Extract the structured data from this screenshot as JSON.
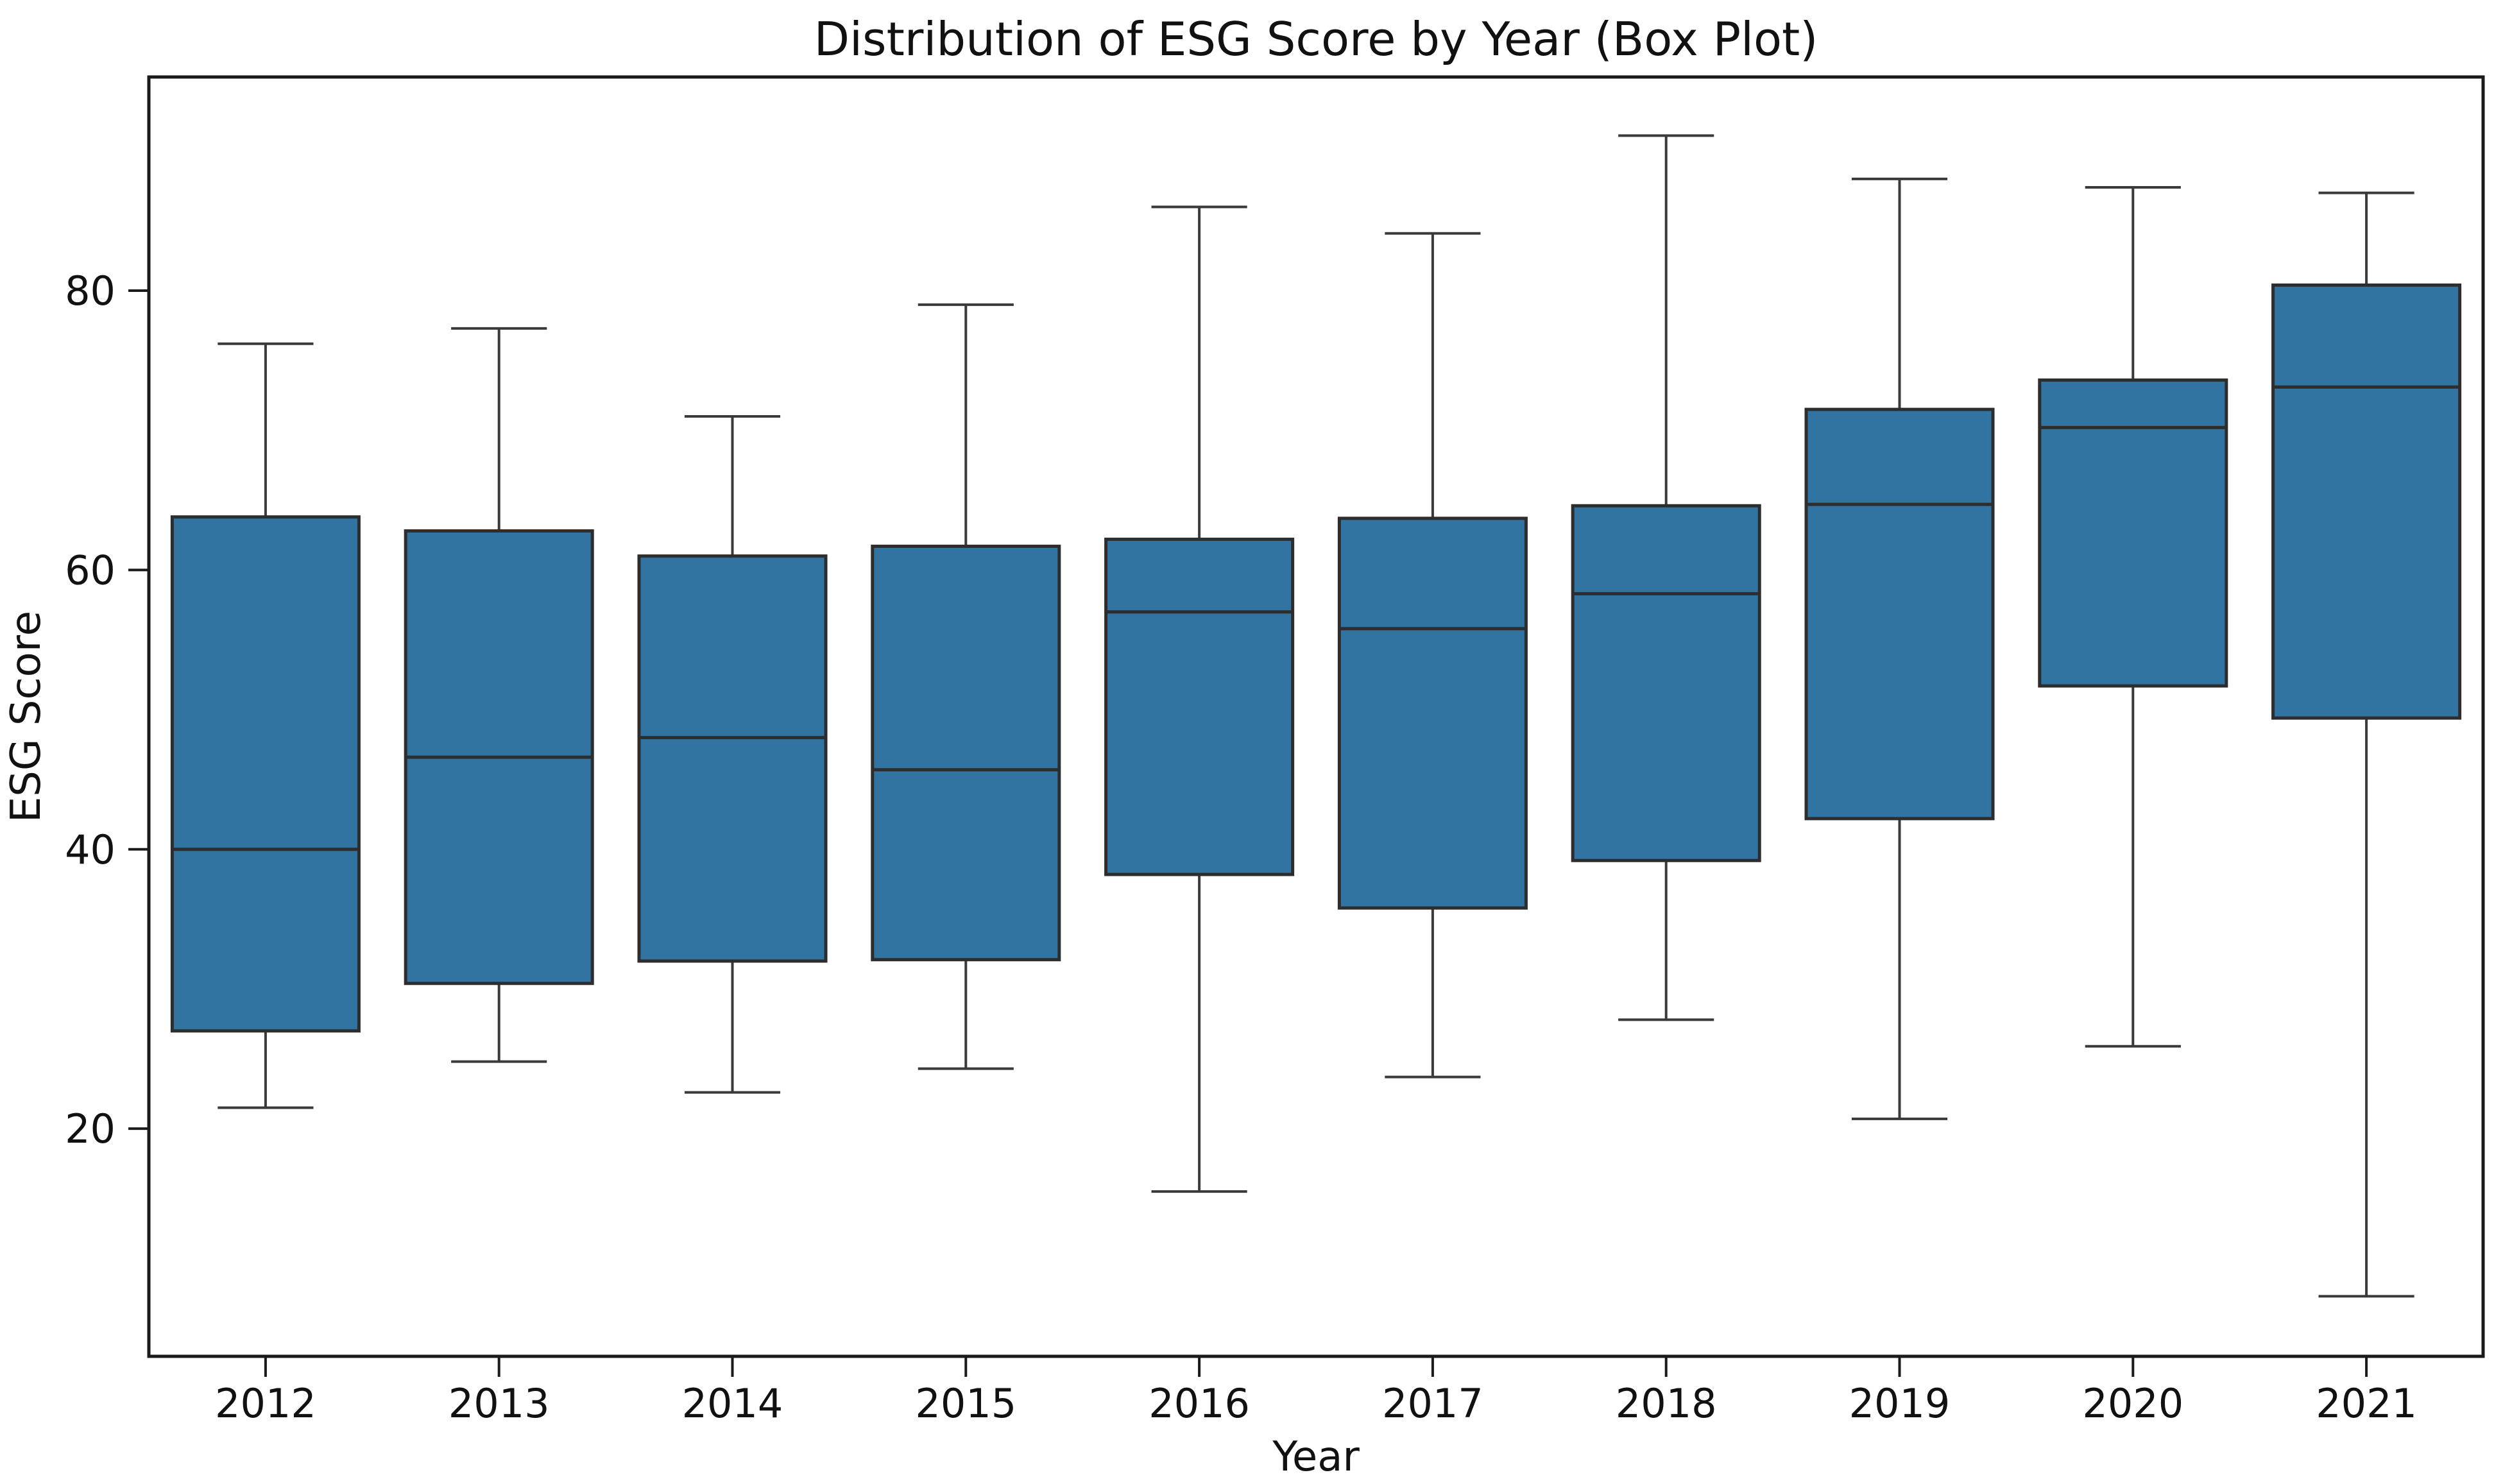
{
  "chart_data": {
    "type": "box",
    "title": "Distribution of ESG Score by Year (Box Plot)",
    "xlabel": "Year",
    "ylabel": "ESG Score",
    "categories": [
      "2012",
      "2013",
      "2014",
      "2015",
      "2016",
      "2017",
      "2018",
      "2019",
      "2020",
      "2021"
    ],
    "series": [
      {
        "year": "2012",
        "whisker_low": 21.5,
        "q1": 27.0,
        "median": 40.0,
        "q3": 63.8,
        "whisker_high": 76.2
      },
      {
        "year": "2013",
        "whisker_low": 24.8,
        "q1": 30.4,
        "median": 46.6,
        "q3": 62.8,
        "whisker_high": 77.3
      },
      {
        "year": "2014",
        "whisker_low": 22.6,
        "q1": 32.0,
        "median": 48.0,
        "q3": 61.0,
        "whisker_high": 71.0
      },
      {
        "year": "2015",
        "whisker_low": 24.3,
        "q1": 32.1,
        "median": 45.7,
        "q3": 61.7,
        "whisker_high": 79.0
      },
      {
        "year": "2016",
        "whisker_low": 15.5,
        "q1": 38.2,
        "median": 57.0,
        "q3": 62.2,
        "whisker_high": 86.0
      },
      {
        "year": "2017",
        "whisker_low": 23.7,
        "q1": 35.8,
        "median": 55.8,
        "q3": 63.7,
        "whisker_high": 84.1
      },
      {
        "year": "2018",
        "whisker_low": 27.8,
        "q1": 39.2,
        "median": 58.3,
        "q3": 64.6,
        "whisker_high": 91.1
      },
      {
        "year": "2019",
        "whisker_low": 20.7,
        "q1": 42.2,
        "median": 64.7,
        "q3": 71.5,
        "whisker_high": 88.0
      },
      {
        "year": "2020",
        "whisker_low": 25.9,
        "q1": 51.7,
        "median": 70.2,
        "q3": 73.6,
        "whisker_high": 87.4
      },
      {
        "year": "2021",
        "whisker_low": 8.0,
        "q1": 49.4,
        "median": 73.1,
        "q3": 80.4,
        "whisker_high": 87.0
      }
    ],
    "yticks": [
      20,
      40,
      60,
      80
    ],
    "ylim": [
      3.7,
      95.3
    ],
    "grid": false,
    "legend": "none",
    "colors": {
      "box_fill": "#3274a1",
      "box_edge": "#2d2d2d",
      "whisker": "#3a3a3a",
      "median": "#2d2d2d",
      "spine": "#1a1a1a",
      "background": "#ffffff"
    }
  }
}
